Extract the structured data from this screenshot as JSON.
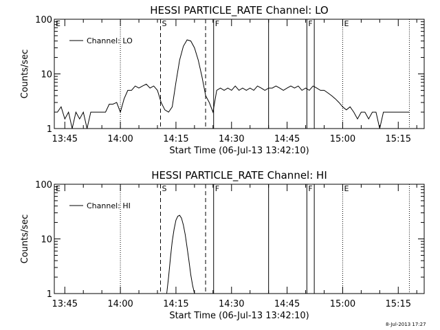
{
  "footer": "8-Jul-2013 17:27",
  "chart_data": [
    {
      "type": "line",
      "title": "HESSI PARTICLE_RATE Channel: LO",
      "xlabel": "Start Time (06-Jul-13 13:42:10)",
      "ylabel": "Counts/sec",
      "y_scale": "log",
      "ylim": [
        1,
        100
      ],
      "xlim": [
        "13:42:10",
        "15:22:00"
      ],
      "x_ticks": [
        "13:45",
        "14:00",
        "14:15",
        "14:30",
        "14:45",
        "15:00",
        "15:15"
      ],
      "y_ticks": [
        "1",
        "10",
        "100"
      ],
      "legend": {
        "position": "top-left",
        "label": "Channel: LO"
      },
      "markers": [
        {
          "time": "13:42:10",
          "label": "E",
          "style": "dotted"
        },
        {
          "time": "14:00:00",
          "label": "",
          "style": "dotted"
        },
        {
          "time": "14:10:50",
          "label": "S",
          "style": "dashed"
        },
        {
          "time": "14:23:00",
          "label": "",
          "style": "dashed"
        },
        {
          "time": "14:25:10",
          "label": "F",
          "style": "solid"
        },
        {
          "time": "14:40:00",
          "label": "",
          "style": "solid"
        },
        {
          "time": "14:50:20",
          "label": "F",
          "style": "solid"
        },
        {
          "time": "14:52:20",
          "label": "",
          "style": "solid"
        },
        {
          "time": "15:00:00",
          "label": "E",
          "style": "dotted"
        },
        {
          "time": "15:18:00",
          "label": "",
          "style": "dotted"
        }
      ],
      "series": [
        {
          "name": "Channel: LO",
          "x": [
            "13:43:00",
            "13:44:00",
            "13:45:00",
            "13:46:00",
            "13:47:00",
            "13:48:00",
            "13:49:00",
            "13:50:00",
            "13:51:00",
            "13:52:00",
            "13:53:00",
            "13:54:00",
            "13:55:00",
            "13:56:00",
            "13:57:00",
            "13:58:00",
            "13:59:00",
            "14:00:00",
            "14:01:00",
            "14:02:00",
            "14:03:00",
            "14:04:00",
            "14:05:00",
            "14:06:00",
            "14:07:00",
            "14:08:00",
            "14:09:00",
            "14:10:00",
            "14:11:00",
            "14:12:00",
            "14:13:00",
            "14:14:00",
            "14:15:00",
            "14:16:00",
            "14:17:00",
            "14:18:00",
            "14:19:00",
            "14:20:00",
            "14:21:00",
            "14:22:00",
            "14:23:00",
            "14:24:00",
            "14:25:00",
            "14:26:00",
            "14:27:00",
            "14:28:00",
            "14:29:00",
            "14:30:00",
            "14:31:00",
            "14:32:00",
            "14:33:00",
            "14:34:00",
            "14:35:00",
            "14:36:00",
            "14:37:00",
            "14:38:00",
            "14:39:00",
            "14:40:00",
            "14:41:00",
            "14:42:00",
            "14:43:00",
            "14:44:00",
            "14:45:00",
            "14:46:00",
            "14:47:00",
            "14:48:00",
            "14:49:00",
            "14:50:00",
            "14:51:00",
            "14:52:00",
            "14:53:00",
            "14:54:00",
            "14:55:00",
            "14:56:00",
            "14:57:00",
            "14:58:00",
            "14:59:00",
            "15:00:00",
            "15:01:00",
            "15:02:00",
            "15:03:00",
            "15:04:00",
            "15:05:00",
            "15:06:00",
            "15:07:00",
            "15:08:00",
            "15:09:00",
            "15:10:00",
            "15:11:00",
            "15:12:00",
            "15:13:00",
            "15:14:00",
            "15:15:00",
            "15:16:00",
            "15:17:00",
            "15:18:00"
          ],
          "values": [
            2,
            2.5,
            1.5,
            2,
            1,
            2,
            1.5,
            2,
            1,
            2,
            2,
            2,
            2,
            2,
            2.8,
            2.8,
            3,
            2,
            3.5,
            5,
            5,
            6,
            5.5,
            6,
            6.5,
            5.5,
            6,
            5,
            3,
            2.2,
            2,
            2.5,
            7,
            18,
            32,
            42,
            40,
            30,
            18,
            9,
            4,
            3,
            2,
            5,
            5.5,
            5,
            5.5,
            5,
            6,
            5,
            5.5,
            5,
            5.5,
            5,
            6,
            5.5,
            5,
            5.5,
            5.5,
            6,
            5.5,
            5,
            5.5,
            6,
            5.5,
            6,
            5,
            5.5,
            5,
            6,
            5.5,
            5,
            5,
            4.5,
            4,
            3.5,
            3,
            2.5,
            2.2,
            2.5,
            2,
            1.5,
            2,
            2,
            1.5,
            2,
            2,
            1,
            2,
            2,
            2,
            2,
            2,
            2,
            2,
            2
          ]
        }
      ]
    },
    {
      "type": "line",
      "title": "HESSI PARTICLE_RATE Channel: HI",
      "xlabel": "Start Time (06-Jul-13 13:42:10)",
      "ylabel": "Counts/sec",
      "y_scale": "log",
      "ylim": [
        1,
        100
      ],
      "xlim": [
        "13:42:10",
        "15:22:00"
      ],
      "x_ticks": [
        "13:45",
        "14:00",
        "14:15",
        "14:30",
        "14:45",
        "15:00",
        "15:15"
      ],
      "y_ticks": [
        "1",
        "10",
        "100"
      ],
      "legend": {
        "position": "top-left",
        "label": "Channel: HI"
      },
      "markers": [
        {
          "time": "13:42:10",
          "label": "E",
          "style": "dotted"
        },
        {
          "time": "14:00:00",
          "label": "",
          "style": "dotted"
        },
        {
          "time": "14:10:50",
          "label": "S",
          "style": "dashed"
        },
        {
          "time": "14:23:00",
          "label": "",
          "style": "dashed"
        },
        {
          "time": "14:25:10",
          "label": "F",
          "style": "solid"
        },
        {
          "time": "14:40:00",
          "label": "",
          "style": "solid"
        },
        {
          "time": "14:50:20",
          "label": "F",
          "style": "solid"
        },
        {
          "time": "14:52:20",
          "label": "",
          "style": "solid"
        },
        {
          "time": "15:00:00",
          "label": "E",
          "style": "dotted"
        },
        {
          "time": "15:18:00",
          "label": "",
          "style": "dotted"
        }
      ],
      "series": [
        {
          "name": "Channel: HI",
          "x": [
            "14:12:30",
            "14:13:00",
            "14:13:30",
            "14:14:00",
            "14:14:30",
            "14:15:00",
            "14:15:30",
            "14:16:00",
            "14:16:30",
            "14:17:00",
            "14:17:30",
            "14:18:00",
            "14:18:30",
            "14:19:00",
            "14:19:30",
            "14:20:00"
          ],
          "values": [
            1,
            2,
            4.5,
            9,
            15,
            22,
            26,
            27,
            24,
            18,
            12,
            7,
            4,
            2.2,
            1.4,
            1
          ]
        }
      ]
    }
  ]
}
